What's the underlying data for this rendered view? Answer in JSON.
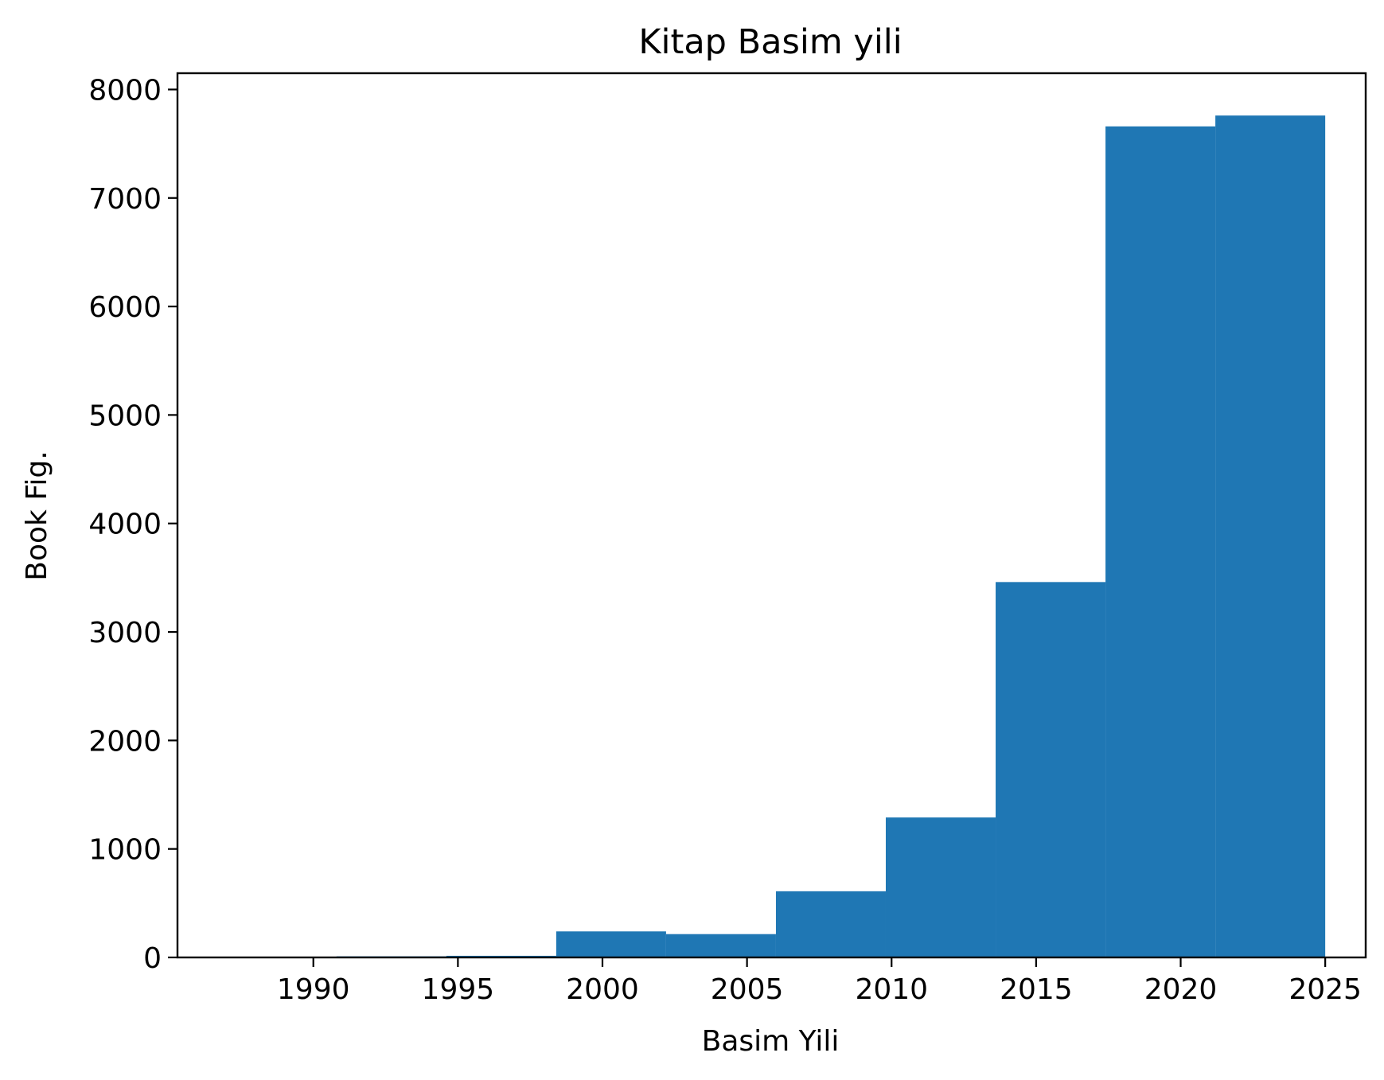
{
  "chart_data": {
    "type": "bar",
    "title": "Kitap Basim yili",
    "xlabel": "Basim Yili",
    "ylabel": "Book Fig.",
    "xlim": [
      1985.3,
      2026.4
    ],
    "ylim": [
      0,
      8150
    ],
    "xticks": [
      1990,
      1995,
      2000,
      2005,
      2010,
      2015,
      2020,
      2025
    ],
    "yticks": [
      0,
      1000,
      2000,
      3000,
      4000,
      5000,
      6000,
      7000,
      8000
    ],
    "grid": false,
    "bar_color": "#1f77b4",
    "bins": [
      {
        "x0": 1987.0,
        "x1": 1990.8,
        "value": 0
      },
      {
        "x0": 1990.8,
        "x1": 1994.6,
        "value": 10
      },
      {
        "x0": 1994.6,
        "x1": 1998.4,
        "value": 15
      },
      {
        "x0": 1998.4,
        "x1": 2002.2,
        "value": 240
      },
      {
        "x0": 2002.2,
        "x1": 2006.0,
        "value": 215
      },
      {
        "x0": 2006.0,
        "x1": 2009.8,
        "value": 610
      },
      {
        "x0": 2009.8,
        "x1": 2013.6,
        "value": 1290
      },
      {
        "x0": 2013.6,
        "x1": 2017.4,
        "value": 3460
      },
      {
        "x0": 2017.4,
        "x1": 2021.2,
        "value": 7660
      },
      {
        "x0": 2021.2,
        "x1": 2025.0,
        "value": 7760
      }
    ]
  }
}
